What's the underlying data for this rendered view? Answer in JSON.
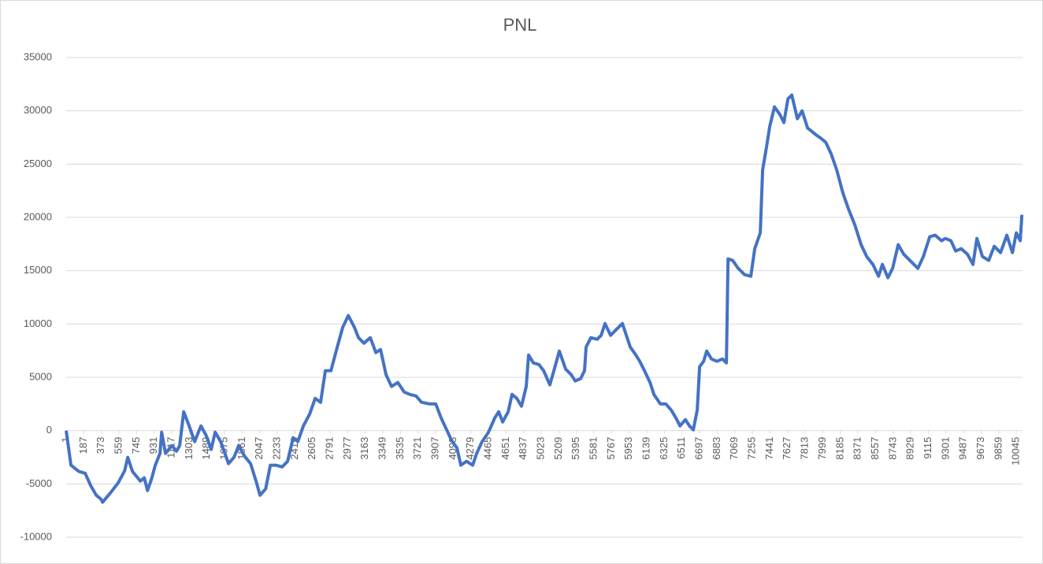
{
  "chart_data": {
    "type": "line",
    "title": "PNL",
    "x": [
      1,
      52,
      136,
      202,
      261,
      319,
      369,
      386,
      469,
      552,
      619,
      652,
      702,
      785,
      827,
      860,
      902,
      943,
      993,
      1010,
      1051,
      1118,
      1168,
      1201,
      1243,
      1301,
      1359,
      1426,
      1484,
      1534,
      1576,
      1634,
      1717,
      1775,
      1825,
      1884,
      1950,
      2008,
      2050,
      2109,
      2159,
      2217,
      2284,
      2342,
      2400,
      2450,
      2508,
      2575,
      2633,
      2691,
      2741,
      2800,
      2866,
      2924,
      2983,
      3049,
      3091,
      3149,
      3216,
      3274,
      3324,
      3382,
      3441,
      3507,
      3574,
      3632,
      3699,
      3757,
      3840,
      3907,
      3965,
      4023,
      4073,
      4132,
      4173,
      4232,
      4298,
      4340,
      4398,
      4465,
      4531,
      4573,
      4615,
      4673,
      4714,
      4764,
      4814,
      4864,
      4889,
      4939,
      4998,
      5048,
      5114,
      5156,
      5214,
      5281,
      5339,
      5381,
      5439,
      5480,
      5497,
      5547,
      5614,
      5656,
      5697,
      5756,
      5797,
      5881,
      5922,
      5964,
      6023,
      6064,
      6114,
      6173,
      6214,
      6281,
      6339,
      6397,
      6447,
      6489,
      6547,
      6589,
      6630,
      6672,
      6697,
      6739,
      6772,
      6822,
      6880,
      6938,
      6980,
      6997,
      7047,
      7105,
      7172,
      7238,
      7280,
      7338,
      7363,
      7405,
      7438,
      7488,
      7547,
      7588,
      7630,
      7671,
      7730,
      7780,
      7838,
      7921,
      7980,
      8030,
      8088,
      8146,
      8213,
      8271,
      8338,
      8404,
      8463,
      8529,
      8588,
      8629,
      8687,
      8737,
      8796,
      8854,
      8920,
      9004,
      9062,
      9129,
      9187,
      9254,
      9295,
      9353,
      9403,
      9462,
      9528,
      9586,
      9628,
      9686,
      9753,
      9811,
      9878,
      9944,
      10003,
      10044,
      10086,
      10103
    ],
    "series": [
      {
        "color": "#4472c4",
        "values": [
          0,
          -3250,
          -3840,
          -4000,
          -5170,
          -6060,
          -6430,
          -6720,
          -5840,
          -4880,
          -3770,
          -2510,
          -3840,
          -4730,
          -4430,
          -5620,
          -4580,
          -3250,
          -2140,
          -150,
          -2140,
          -1400,
          -1920,
          -1400,
          1770,
          440,
          -1030,
          440,
          -520,
          -1770,
          -150,
          -1030,
          -3100,
          -2510,
          -1400,
          -2360,
          -3100,
          -4730,
          -6060,
          -5470,
          -3250,
          -3250,
          -3400,
          -2880,
          -670,
          -1030,
          440,
          1550,
          3030,
          2660,
          5620,
          5620,
          7830,
          9680,
          10790,
          9680,
          8720,
          8200,
          8720,
          7320,
          7610,
          5250,
          4140,
          4510,
          3620,
          3400,
          3250,
          2660,
          2510,
          2510,
          1180,
          70,
          -890,
          -1630,
          -3250,
          -2880,
          -3250,
          -2140,
          -1030,
          -150,
          1180,
          1770,
          810,
          1770,
          3400,
          3030,
          2290,
          4140,
          7090,
          6350,
          6200,
          5620,
          4290,
          5620,
          7460,
          5760,
          5250,
          4660,
          4880,
          5620,
          7830,
          8720,
          8570,
          8940,
          10050,
          8940,
          9310,
          10050,
          8940,
          7830,
          7090,
          6500,
          5620,
          4510,
          3400,
          2510,
          2510,
          1920,
          1180,
          440,
          1030,
          440,
          70,
          1920,
          5990,
          6500,
          7460,
          6720,
          6500,
          6720,
          6350,
          16110,
          15960,
          15220,
          14630,
          14480,
          17070,
          18550,
          24460,
          26680,
          28530,
          30370,
          29630,
          28900,
          31110,
          31480,
          29260,
          30000,
          28380,
          27790,
          27420,
          27050,
          25940,
          24460,
          22240,
          20770,
          19290,
          17440,
          16330,
          15590,
          14480,
          15590,
          14340,
          15220,
          17440,
          16550,
          15960,
          15220,
          16330,
          18180,
          18330,
          17810,
          18030,
          17810,
          16850,
          17070,
          16550,
          15590,
          18030,
          16330,
          15960,
          17290,
          16700,
          18330,
          16700,
          18550,
          17810,
          20250
        ]
      }
    ],
    "xlim": [
      1,
      10110
    ],
    "xticks": [
      1,
      187,
      373,
      559,
      745,
      931,
      1117,
      1303,
      1489,
      1675,
      1861,
      2047,
      2233,
      2419,
      2605,
      2791,
      2977,
      3163,
      3349,
      3535,
      3721,
      3907,
      4093,
      4279,
      4465,
      4651,
      4837,
      5023,
      5209,
      5395,
      5581,
      5767,
      5953,
      6139,
      6325,
      6511,
      6697,
      6883,
      7069,
      7255,
      7441,
      7627,
      7813,
      7999,
      8185,
      8371,
      8557,
      8743,
      8929,
      9115,
      9301,
      9487,
      9673,
      9859,
      10045
    ],
    "ylim": [
      -10000,
      35000
    ],
    "yticks": [
      -10000,
      -5000,
      0,
      5000,
      10000,
      15000,
      20000,
      25000,
      30000,
      35000
    ],
    "grid": true
  }
}
